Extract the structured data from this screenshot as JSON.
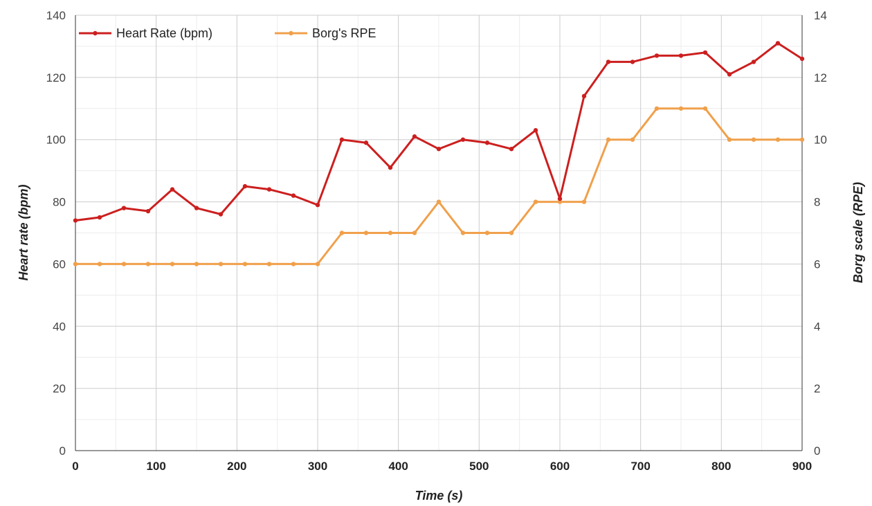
{
  "chart_data": {
    "type": "line",
    "x_title": "Time (s)",
    "y_left_title": "Heart rate (bpm)",
    "y_right_title": "Borg scale (RPE)",
    "xlim": [
      0,
      900
    ],
    "ylim_left": [
      0,
      140
    ],
    "ylim_right": [
      0,
      14
    ],
    "x_ticks": [
      0,
      100,
      200,
      300,
      400,
      500,
      600,
      700,
      800,
      900
    ],
    "y_left_ticks": [
      0,
      20,
      40,
      60,
      80,
      100,
      120,
      140
    ],
    "y_right_ticks": [
      0,
      2,
      4,
      6,
      8,
      10,
      12,
      14
    ],
    "grid": true,
    "legend_position": "top-left",
    "x": [
      0,
      30,
      60,
      90,
      120,
      150,
      180,
      210,
      240,
      270,
      300,
      330,
      360,
      390,
      420,
      450,
      480,
      510,
      540,
      570,
      600,
      630,
      660,
      690,
      720,
      750,
      780,
      810,
      840,
      870,
      900
    ],
    "series": [
      {
        "name": "Heart Rate (bpm)",
        "axis": "left",
        "color": "#cc1f1f",
        "values": [
          74,
          75,
          78,
          77,
          84,
          78,
          76,
          85,
          84,
          82,
          79,
          100,
          99,
          91,
          101,
          97,
          100,
          99,
          97,
          103,
          81,
          114,
          125,
          125,
          127,
          127,
          128,
          121,
          125,
          131,
          126
        ]
      },
      {
        "name": "Borg's RPE",
        "axis": "right",
        "color": "#f0a04b",
        "values": [
          6,
          6,
          6,
          6,
          6,
          6,
          6,
          6,
          6,
          6,
          6,
          7,
          7,
          7,
          7,
          8,
          7,
          7,
          7,
          8,
          8,
          8,
          10,
          10,
          11,
          11,
          11,
          10,
          10,
          10,
          10
        ]
      }
    ]
  }
}
